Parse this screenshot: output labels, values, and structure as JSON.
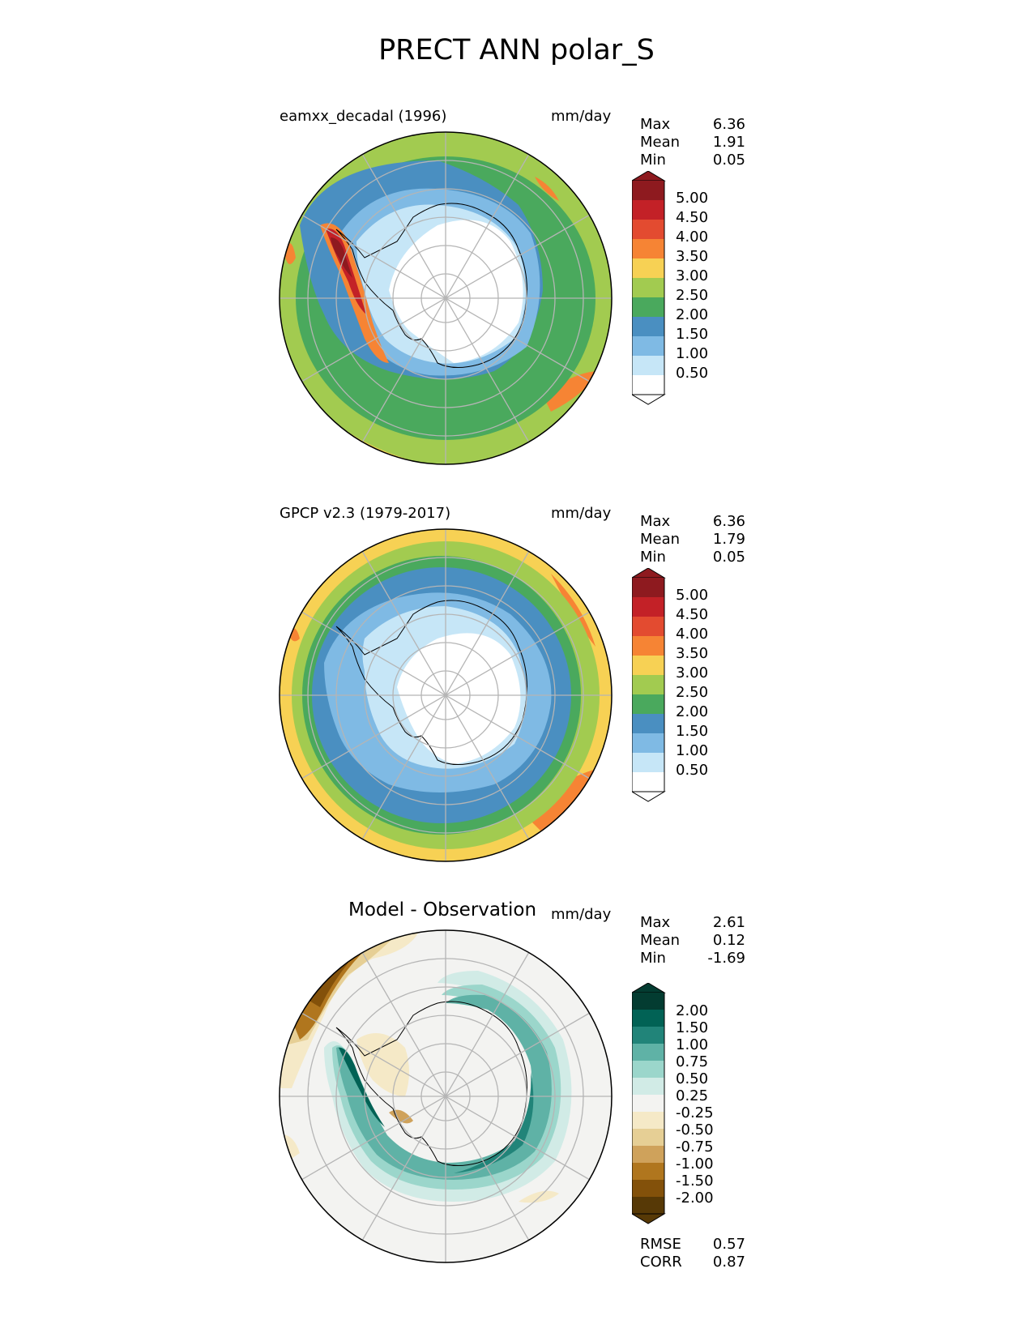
{
  "title": "PRECT ANN polar_S",
  "colors": {
    "precip": [
      "#ffffff",
      "#c6e6f7",
      "#7fbae4",
      "#4a8fc1",
      "#4aa95d",
      "#a2cb50",
      "#f7d154",
      "#f68434",
      "#e34b30",
      "#c32127",
      "#8e1a1f"
    ],
    "diff": [
      "#573906",
      "#83510a",
      "#b0761e",
      "#cfa25b",
      "#e6cf95",
      "#f5e9c7",
      "#f3f3f1",
      "#d1ebe6",
      "#9bd6cb",
      "#5fb2a6",
      "#218479",
      "#016255",
      "#033c31"
    ],
    "grid": "#b5b5b5"
  },
  "panels": [
    {
      "name": "test",
      "title": "eamxx_decadal (1996)",
      "units": "mm/day",
      "stats": [
        {
          "label": "Max",
          "value": "6.36"
        },
        {
          "label": "Mean",
          "value": "1.91"
        },
        {
          "label": "Min",
          "value": "0.05"
        }
      ],
      "colorbar_ticks": [
        "5.00",
        "4.50",
        "4.00",
        "3.50",
        "3.00",
        "2.50",
        "2.00",
        "1.50",
        "1.00",
        "0.50"
      ]
    },
    {
      "name": "reference",
      "title": "GPCP v2.3 (1979-2017)",
      "units": "mm/day",
      "stats": [
        {
          "label": "Max",
          "value": "6.36"
        },
        {
          "label": "Mean",
          "value": "1.79"
        },
        {
          "label": "Min",
          "value": "0.05"
        }
      ],
      "colorbar_ticks": [
        "5.00",
        "4.50",
        "4.00",
        "3.50",
        "3.00",
        "2.50",
        "2.00",
        "1.50",
        "1.00",
        "0.50"
      ]
    },
    {
      "name": "difference",
      "title": "Model - Observation",
      "units": "mm/day",
      "stats": [
        {
          "label": "Max",
          "value": "2.61"
        },
        {
          "label": "Mean",
          "value": "0.12"
        },
        {
          "label": "Min",
          "value": "-1.69"
        }
      ],
      "colorbar_ticks": [
        "2.00",
        "1.50",
        "1.00",
        "0.75",
        "0.50",
        "0.25",
        "-0.25",
        "-0.50",
        "-0.75",
        "-1.00",
        "-1.50",
        "-2.00"
      ],
      "metrics": [
        {
          "label": "RMSE",
          "value": "0.57"
        },
        {
          "label": "CORR",
          "value": "0.87"
        }
      ]
    }
  ]
}
